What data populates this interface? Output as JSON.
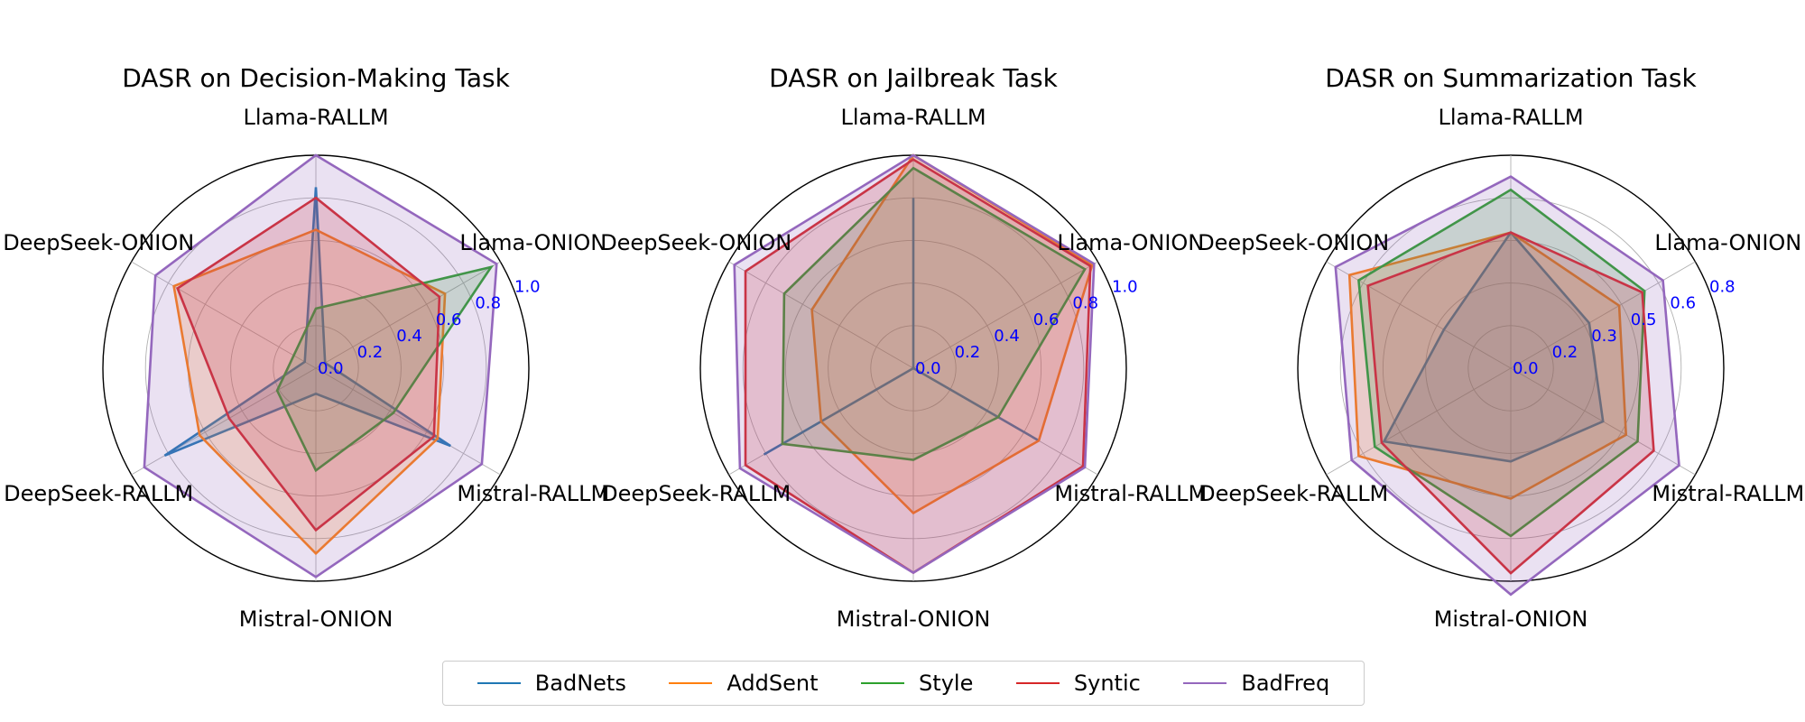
{
  "chart_data": [
    {
      "type": "radar",
      "title": "DASR on Decision-Making Task",
      "axes": [
        "Llama-RALLM",
        "Llama-ONION",
        "Mistral-RALLM",
        "Mistral-ONION",
        "DeepSeek-RALLM",
        "DeepSeek-ONION"
      ],
      "rlim": [
        0,
        1.0
      ],
      "rticks": [
        "0.0",
        "0.2",
        "0.4",
        "0.6",
        "0.8",
        "1.0"
      ],
      "rtick_values": [
        0,
        0.2,
        0.4,
        0.6,
        0.8,
        1.0
      ],
      "series": [
        {
          "name": "BadNets",
          "values": [
            0.85,
            0.05,
            0.73,
            0.12,
            0.82,
            0.06
          ]
        },
        {
          "name": "AddSent",
          "values": [
            0.65,
            0.7,
            0.66,
            0.87,
            0.63,
            0.77
          ]
        },
        {
          "name": "Style",
          "values": [
            0.28,
            0.95,
            0.42,
            0.48,
            0.21,
            0.12
          ]
        },
        {
          "name": "Syntic",
          "values": [
            0.8,
            0.67,
            0.64,
            0.76,
            0.47,
            0.75
          ]
        },
        {
          "name": "BadFreq",
          "values": [
            1.0,
            0.98,
            0.9,
            0.98,
            0.93,
            0.87
          ]
        }
      ]
    },
    {
      "type": "radar",
      "title": "DASR on Jailbreak Task",
      "axes": [
        "Llama-RALLM",
        "Llama-ONION",
        "Mistral-RALLM",
        "Mistral-ONION",
        "DeepSeek-RALLM",
        "DeepSeek-ONION"
      ],
      "rlim": [
        0,
        1.0
      ],
      "rticks": [
        "0.0",
        "0.2",
        "0.4",
        "0.6",
        "0.8",
        "1.0"
      ],
      "rtick_values": [
        0,
        0.2,
        0.4,
        0.6,
        0.8,
        1.0
      ],
      "series": [
        {
          "name": "BadNets",
          "values": [
            0.8,
            0.0,
            0.68,
            0.0,
            0.81,
            0.0
          ]
        },
        {
          "name": "AddSent",
          "values": [
            1.0,
            0.97,
            0.68,
            0.68,
            0.5,
            0.55
          ]
        },
        {
          "name": "Style",
          "values": [
            0.94,
            0.93,
            0.46,
            0.43,
            0.71,
            0.7
          ]
        },
        {
          "name": "Syntic",
          "values": [
            0.98,
            0.96,
            0.92,
            0.96,
            0.91,
            0.91
          ]
        },
        {
          "name": "BadFreq",
          "values": [
            1.0,
            0.98,
            0.93,
            0.96,
            0.94,
            0.97
          ]
        }
      ]
    },
    {
      "type": "radar",
      "title": "DASR on Summarization Task",
      "axes": [
        "Llama-RALLM",
        "Llama-ONION",
        "Mistral-RALLM",
        "Mistral-ONION",
        "DeepSeek-RALLM",
        "DeepSeek-ONION"
      ],
      "rlim": [
        0,
        0.8
      ],
      "rticks": [
        "0.0",
        "0.2",
        "0.3",
        "0.5",
        "0.6",
        "0.8"
      ],
      "rtick_values": [
        0,
        0.16,
        0.32,
        0.48,
        0.64,
        0.8
      ],
      "series": [
        {
          "name": "BadNets",
          "values": [
            0.51,
            0.34,
            0.4,
            0.35,
            0.55,
            0.29
          ]
        },
        {
          "name": "AddSent",
          "values": [
            0.51,
            0.47,
            0.5,
            0.49,
            0.66,
            0.7
          ]
        },
        {
          "name": "Style",
          "values": [
            0.67,
            0.58,
            0.55,
            0.63,
            0.59,
            0.66
          ]
        },
        {
          "name": "Syntic",
          "values": [
            0.51,
            0.57,
            0.62,
            0.77,
            0.56,
            0.62
          ]
        },
        {
          "name": "BadFreq",
          "values": [
            0.72,
            0.66,
            0.73,
            0.85,
            0.69,
            0.76
          ]
        }
      ]
    }
  ],
  "legend": {
    "placement": "bottom-center",
    "items": [
      {
        "name": "BadNets",
        "color": "#1f77b4"
      },
      {
        "name": "AddSent",
        "color": "#ff7f0e"
      },
      {
        "name": "Style",
        "color": "#2ca02c"
      },
      {
        "name": "Syntic",
        "color": "#d62728"
      },
      {
        "name": "BadFreq",
        "color": "#9467bd"
      }
    ]
  },
  "colors": {
    "BadNets": "#1f77b4",
    "AddSent": "#ff7f0e",
    "Style": "#2ca02c",
    "Syntic": "#d62728",
    "BadFreq": "#9467bd",
    "tick_label": "#0000ff",
    "grid": "#b0b0b0"
  },
  "grid": true
}
